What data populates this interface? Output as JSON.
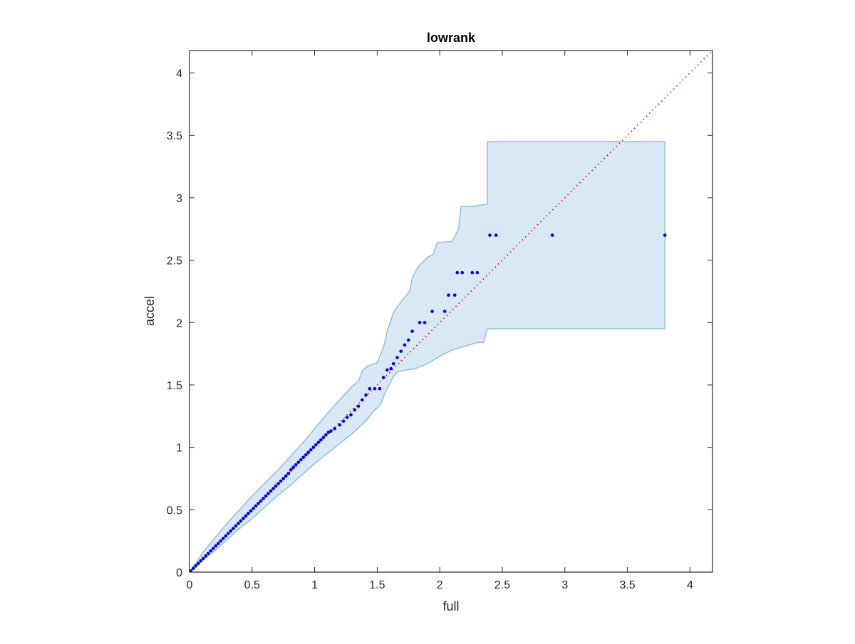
{
  "chart_data": {
    "type": "scatter",
    "title": "lowrank",
    "xlabel": "full",
    "ylabel": "accel",
    "xlim": [
      0,
      4.18
    ],
    "ylim": [
      0,
      4.18
    ],
    "xticks": [
      0,
      0.5,
      1,
      1.5,
      2,
      2.5,
      3,
      3.5,
      4
    ],
    "yticks": [
      0,
      0.5,
      1,
      1.5,
      2,
      2.5,
      3,
      3.5,
      4
    ],
    "xtick_labels": [
      "0",
      "0.5",
      "1",
      "1.5",
      "2",
      "2.5",
      "3",
      "3.5",
      "4"
    ],
    "ytick_labels": [
      "0",
      "0.5",
      "1",
      "1.5",
      "2",
      "2.5",
      "3",
      "3.5",
      "4"
    ],
    "grid": false,
    "legend": "none",
    "colors": {
      "points": "#0000ee",
      "reference_line": "#ff0000",
      "band_fill": "#d9e8f5",
      "band_edge": "#8fbfdc",
      "axes": "#262626"
    },
    "reference_line": {
      "style": "dotted",
      "from": [
        0,
        0
      ],
      "to": [
        4.18,
        4.18
      ]
    },
    "band": {
      "upper": [
        [
          0,
          0
        ],
        [
          0.05,
          0.07
        ],
        [
          0.1,
          0.15
        ],
        [
          0.2,
          0.27
        ],
        [
          0.3,
          0.39
        ],
        [
          0.4,
          0.5
        ],
        [
          0.5,
          0.61
        ],
        [
          0.6,
          0.71
        ],
        [
          0.7,
          0.81
        ],
        [
          0.8,
          0.92
        ],
        [
          0.9,
          1.03
        ],
        [
          1.0,
          1.15
        ],
        [
          1.1,
          1.27
        ],
        [
          1.2,
          1.38
        ],
        [
          1.3,
          1.49
        ],
        [
          1.35,
          1.53
        ],
        [
          1.38,
          1.61
        ],
        [
          1.42,
          1.65
        ],
        [
          1.5,
          1.68
        ],
        [
          1.55,
          1.8
        ],
        [
          1.58,
          1.93
        ],
        [
          1.63,
          2.08
        ],
        [
          1.7,
          2.18
        ],
        [
          1.76,
          2.25
        ],
        [
          1.78,
          2.36
        ],
        [
          1.83,
          2.45
        ],
        [
          1.9,
          2.52
        ],
        [
          1.95,
          2.55
        ],
        [
          1.98,
          2.64
        ],
        [
          2.1,
          2.65
        ],
        [
          2.15,
          2.75
        ],
        [
          2.17,
          2.93
        ],
        [
          2.25,
          2.93
        ],
        [
          2.38,
          2.95
        ],
        [
          2.38,
          3.45
        ],
        [
          3.8,
          3.45
        ]
      ],
      "lower": [
        [
          0,
          0
        ],
        [
          0.05,
          0.04
        ],
        [
          0.1,
          0.09
        ],
        [
          0.2,
          0.17
        ],
        [
          0.3,
          0.26
        ],
        [
          0.4,
          0.35
        ],
        [
          0.5,
          0.43
        ],
        [
          0.6,
          0.52
        ],
        [
          0.7,
          0.61
        ],
        [
          0.8,
          0.69
        ],
        [
          0.9,
          0.78
        ],
        [
          1.0,
          0.87
        ],
        [
          1.1,
          0.95
        ],
        [
          1.2,
          1.03
        ],
        [
          1.3,
          1.11
        ],
        [
          1.4,
          1.2
        ],
        [
          1.48,
          1.3
        ],
        [
          1.52,
          1.33
        ],
        [
          1.57,
          1.45
        ],
        [
          1.63,
          1.57
        ],
        [
          1.67,
          1.61
        ],
        [
          1.8,
          1.63
        ],
        [
          1.9,
          1.67
        ],
        [
          2.0,
          1.73
        ],
        [
          2.1,
          1.78
        ],
        [
          2.2,
          1.81
        ],
        [
          2.3,
          1.84
        ],
        [
          2.35,
          1.84
        ],
        [
          2.38,
          1.95
        ],
        [
          3.8,
          1.95
        ]
      ]
    },
    "series": [
      {
        "points": [
          [
            0.01,
            0.01
          ],
          [
            0.03,
            0.03
          ],
          [
            0.05,
            0.05
          ],
          [
            0.07,
            0.07
          ],
          [
            0.09,
            0.09
          ],
          [
            0.11,
            0.11
          ],
          [
            0.13,
            0.13
          ],
          [
            0.15,
            0.15
          ],
          [
            0.17,
            0.17
          ],
          [
            0.19,
            0.19
          ],
          [
            0.21,
            0.21
          ],
          [
            0.23,
            0.23
          ],
          [
            0.25,
            0.25
          ],
          [
            0.27,
            0.27
          ],
          [
            0.29,
            0.29
          ],
          [
            0.31,
            0.31
          ],
          [
            0.33,
            0.33
          ],
          [
            0.35,
            0.35
          ],
          [
            0.37,
            0.37
          ],
          [
            0.39,
            0.39
          ],
          [
            0.41,
            0.41
          ],
          [
            0.43,
            0.43
          ],
          [
            0.45,
            0.45
          ],
          [
            0.47,
            0.47
          ],
          [
            0.49,
            0.49
          ],
          [
            0.51,
            0.51
          ],
          [
            0.53,
            0.53
          ],
          [
            0.55,
            0.55
          ],
          [
            0.57,
            0.57
          ],
          [
            0.59,
            0.59
          ],
          [
            0.61,
            0.61
          ],
          [
            0.63,
            0.63
          ],
          [
            0.65,
            0.65
          ],
          [
            0.67,
            0.67
          ],
          [
            0.69,
            0.69
          ],
          [
            0.71,
            0.71
          ],
          [
            0.73,
            0.73
          ],
          [
            0.75,
            0.75
          ],
          [
            0.77,
            0.77
          ],
          [
            0.79,
            0.79
          ],
          [
            0.81,
            0.82
          ],
          [
            0.83,
            0.84
          ],
          [
            0.85,
            0.86
          ],
          [
            0.87,
            0.88
          ],
          [
            0.89,
            0.9
          ],
          [
            0.91,
            0.92
          ],
          [
            0.93,
            0.94
          ],
          [
            0.95,
            0.96
          ],
          [
            0.97,
            0.98
          ],
          [
            0.99,
            1.0
          ],
          [
            1.01,
            1.02
          ],
          [
            1.03,
            1.04
          ],
          [
            1.05,
            1.06
          ],
          [
            1.07,
            1.08
          ],
          [
            1.09,
            1.1
          ],
          [
            1.11,
            1.12
          ],
          [
            1.13,
            1.13
          ],
          [
            1.16,
            1.15
          ],
          [
            1.2,
            1.18
          ],
          [
            1.23,
            1.21
          ],
          [
            1.26,
            1.24
          ],
          [
            1.29,
            1.26
          ],
          [
            1.32,
            1.3
          ],
          [
            1.35,
            1.33
          ],
          [
            1.38,
            1.38
          ],
          [
            1.41,
            1.42
          ],
          [
            1.44,
            1.47
          ],
          [
            1.48,
            1.47
          ],
          [
            1.52,
            1.47
          ],
          [
            1.55,
            1.56
          ],
          [
            1.58,
            1.62
          ],
          [
            1.61,
            1.63
          ],
          [
            1.63,
            1.67
          ],
          [
            1.66,
            1.72
          ],
          [
            1.69,
            1.77
          ],
          [
            1.72,
            1.82
          ],
          [
            1.75,
            1.86
          ],
          [
            1.78,
            1.93
          ],
          [
            1.84,
            2.0
          ],
          [
            1.88,
            2.0
          ],
          [
            1.94,
            2.09
          ],
          [
            2.04,
            2.09
          ],
          [
            2.07,
            2.22
          ],
          [
            2.12,
            2.22
          ],
          [
            2.14,
            2.4
          ],
          [
            2.18,
            2.4
          ],
          [
            2.26,
            2.4
          ],
          [
            2.3,
            2.4
          ],
          [
            2.4,
            2.7
          ],
          [
            2.45,
            2.7
          ],
          [
            2.9,
            2.7
          ],
          [
            3.8,
            2.7
          ]
        ]
      }
    ]
  }
}
